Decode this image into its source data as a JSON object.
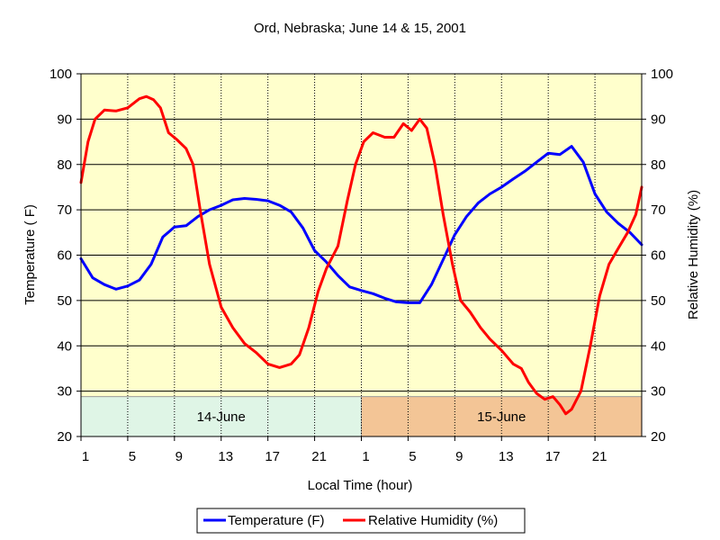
{
  "chart_data": {
    "type": "line",
    "title": "Ord, Nebraska; June 14 & 15, 2001",
    "xlabel": "Local Time (hour)",
    "ylabel_left": "Temperature ( F)",
    "ylabel_right": "Relative Humidity (%)",
    "ylim": [
      20,
      100
    ],
    "yticks": [
      20,
      30,
      40,
      50,
      60,
      70,
      80,
      90,
      100
    ],
    "x_range_hours": [
      0,
      48
    ],
    "xtick_labels": [
      "1",
      "5",
      "9",
      "13",
      "17",
      "21",
      "1",
      "5",
      "9",
      "13",
      "17",
      "21"
    ],
    "xtick_hours": [
      0,
      4,
      8,
      12,
      16,
      20,
      24,
      28,
      32,
      36,
      40,
      44
    ],
    "grid": true,
    "legend_placement": "bottom",
    "bands": [
      {
        "label": "14-June",
        "start": 0,
        "end": 24,
        "color": "#dff5e6"
      },
      {
        "label": "15-June",
        "start": 24,
        "end": 48,
        "color": "#f3c596"
      }
    ],
    "series": [
      {
        "name": "Temperature (F)",
        "color": "#0000ff",
        "axis": "left",
        "points": [
          [
            0,
            59.2
          ],
          [
            1,
            55
          ],
          [
            2,
            53.5
          ],
          [
            3,
            52.5
          ],
          [
            4,
            53.2
          ],
          [
            5,
            54.5
          ],
          [
            6,
            58
          ],
          [
            7,
            64
          ],
          [
            8,
            66.2
          ],
          [
            9,
            66.5
          ],
          [
            10,
            68.5
          ],
          [
            11,
            70
          ],
          [
            12,
            71
          ],
          [
            13,
            72.2
          ],
          [
            14,
            72.5
          ],
          [
            15,
            72.3
          ],
          [
            16,
            72
          ],
          [
            17,
            71
          ],
          [
            18,
            69.5
          ],
          [
            19,
            66
          ],
          [
            20,
            61
          ],
          [
            21,
            58.5
          ],
          [
            22,
            55.5
          ],
          [
            23,
            53
          ],
          [
            24,
            52.2
          ],
          [
            25,
            51.5
          ],
          [
            26,
            50.5
          ],
          [
            27,
            49.7
          ],
          [
            28,
            49.5
          ],
          [
            29,
            49.5
          ],
          [
            30,
            53.5
          ],
          [
            31,
            59
          ],
          [
            32,
            64.5
          ],
          [
            33,
            68.5
          ],
          [
            34,
            71.5
          ],
          [
            35,
            73.5
          ],
          [
            36,
            75
          ],
          [
            37,
            76.8
          ],
          [
            38,
            78.5
          ],
          [
            39,
            80.5
          ],
          [
            40,
            82.5
          ],
          [
            41,
            82.2
          ],
          [
            42,
            84
          ],
          [
            43,
            80.5
          ],
          [
            44,
            73.5
          ],
          [
            45,
            69.5
          ],
          [
            46,
            67
          ],
          [
            47,
            65
          ],
          [
            48,
            62.3
          ]
        ]
      },
      {
        "name": "Relative Humidity (%)",
        "color": "#ff0000",
        "axis": "right",
        "points": [
          [
            0,
            76
          ],
          [
            0.6,
            85
          ],
          [
            1.2,
            90
          ],
          [
            2,
            92
          ],
          [
            3,
            91.8
          ],
          [
            4,
            92.5
          ],
          [
            5,
            94.5
          ],
          [
            5.6,
            95
          ],
          [
            6.2,
            94.3
          ],
          [
            6.8,
            92.5
          ],
          [
            7.5,
            87
          ],
          [
            8.2,
            85.5
          ],
          [
            9,
            83.5
          ],
          [
            9.6,
            80
          ],
          [
            10.2,
            70
          ],
          [
            11,
            58
          ],
          [
            12,
            48.5
          ],
          [
            13,
            44
          ],
          [
            14,
            40.5
          ],
          [
            15,
            38.5
          ],
          [
            16,
            36
          ],
          [
            17,
            35.2
          ],
          [
            18,
            36
          ],
          [
            18.7,
            38
          ],
          [
            19.5,
            44
          ],
          [
            20.3,
            52
          ],
          [
            21,
            57
          ],
          [
            22,
            62
          ],
          [
            22.8,
            72
          ],
          [
            23.5,
            80
          ],
          [
            24.2,
            85
          ],
          [
            25,
            87
          ],
          [
            26,
            86
          ],
          [
            26.8,
            86
          ],
          [
            27.6,
            89
          ],
          [
            28.3,
            87.5
          ],
          [
            29,
            90
          ],
          [
            29.6,
            88
          ],
          [
            30.3,
            80
          ],
          [
            31,
            69
          ],
          [
            31.8,
            58
          ],
          [
            32.5,
            50
          ],
          [
            33.3,
            47.5
          ],
          [
            34.2,
            44
          ],
          [
            35,
            41.5
          ],
          [
            36,
            39
          ],
          [
            37,
            36
          ],
          [
            37.7,
            35
          ],
          [
            38.3,
            32
          ],
          [
            39,
            29.5
          ],
          [
            39.7,
            28.2
          ],
          [
            40.4,
            28.8
          ],
          [
            41,
            27
          ],
          [
            41.5,
            25
          ],
          [
            42,
            26
          ],
          [
            42.8,
            30
          ],
          [
            43.6,
            40
          ],
          [
            44.4,
            51
          ],
          [
            45.2,
            58
          ],
          [
            46,
            61.5
          ],
          [
            46.8,
            65
          ],
          [
            47.5,
            69
          ],
          [
            48,
            75
          ]
        ]
      }
    ]
  }
}
